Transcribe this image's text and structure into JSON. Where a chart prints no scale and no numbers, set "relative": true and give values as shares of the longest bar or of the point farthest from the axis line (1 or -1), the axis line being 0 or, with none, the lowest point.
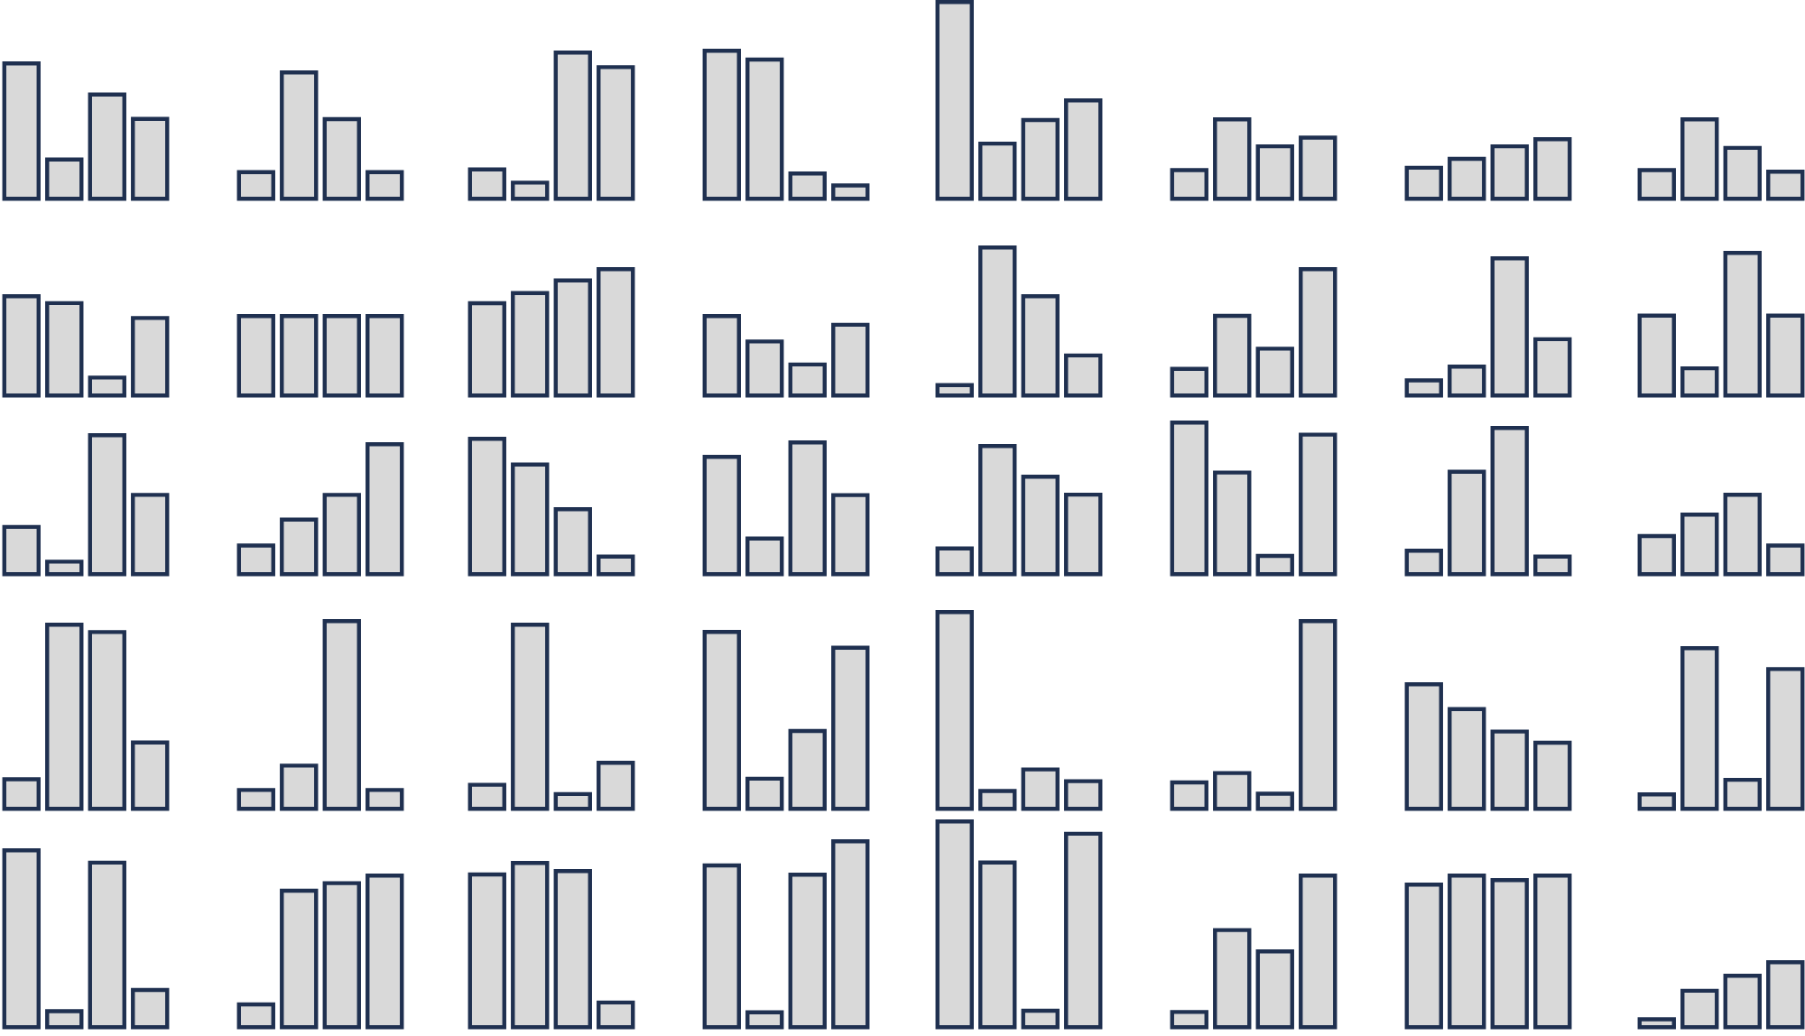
{
  "chart_data": [
    {
      "type": "bar",
      "relative": true,
      "categories": [
        null,
        null,
        null,
        null
      ],
      "values": [
        1,
        0.29,
        0.77,
        0.59
      ],
      "color": "#d9d9d9"
    },
    {
      "type": "bar",
      "relative": true,
      "categories": [
        null,
        null,
        null,
        null
      ],
      "values": [
        0.21,
        1,
        0.63,
        0.21
      ],
      "color": "#d9d9d9"
    },
    {
      "type": "bar",
      "relative": true,
      "categories": [
        null,
        null,
        null,
        null
      ],
      "values": [
        0.2,
        0.11,
        1,
        0.9
      ],
      "color": "#d9d9d9"
    },
    {
      "type": "bar",
      "relative": true,
      "categories": [
        null,
        null,
        null,
        null
      ],
      "values": [
        1,
        0.94,
        0.17,
        0.09
      ],
      "color": "#d9d9d9"
    },
    {
      "type": "bar",
      "relative": true,
      "categories": [
        null,
        null,
        null,
        null
      ],
      "values": [
        1,
        0.28,
        0.4,
        0.5
      ],
      "color": "#d9d9d9"
    },
    {
      "type": "bar",
      "relative": true,
      "categories": [
        null,
        null,
        null,
        null
      ],
      "values": [
        0.36,
        1,
        0.66,
        0.77
      ],
      "color": "#d9d9d9"
    },
    {
      "type": "bar",
      "relative": true,
      "categories": [
        null,
        null,
        null,
        null
      ],
      "values": [
        0.52,
        0.67,
        0.88,
        1
      ],
      "color": "#d9d9d9"
    },
    {
      "type": "bar",
      "relative": true,
      "categories": [
        null,
        null,
        null,
        null
      ],
      "values": [
        0.36,
        1,
        0.64,
        0.34
      ],
      "color": "#d9d9d9"
    },
    {
      "type": "bar",
      "relative": true,
      "categories": [
        null,
        null,
        null,
        null
      ],
      "values": [
        1,
        0.93,
        0.18,
        0.78
      ],
      "color": "#d9d9d9"
    },
    {
      "type": "bar",
      "relative": true,
      "categories": [
        null,
        null,
        null,
        null
      ],
      "values": [
        1,
        1,
        1,
        1
      ],
      "color": "#d9d9d9"
    },
    {
      "type": "bar",
      "relative": true,
      "categories": [
        null,
        null,
        null,
        null
      ],
      "values": [
        0.73,
        0.81,
        0.91,
        1
      ],
      "color": "#d9d9d9"
    },
    {
      "type": "bar",
      "relative": true,
      "categories": [
        null,
        null,
        null,
        null
      ],
      "values": [
        1,
        0.68,
        0.39,
        0.89
      ],
      "color": "#d9d9d9"
    },
    {
      "type": "bar",
      "relative": true,
      "categories": [
        null,
        null,
        null,
        null
      ],
      "values": [
        0.07,
        1,
        0.67,
        0.27
      ],
      "color": "#d9d9d9"
    },
    {
      "type": "bar",
      "relative": true,
      "categories": [
        null,
        null,
        null,
        null
      ],
      "values": [
        0.21,
        0.63,
        0.37,
        1
      ],
      "color": "#d9d9d9"
    },
    {
      "type": "bar",
      "relative": true,
      "categories": [
        null,
        null,
        null,
        null
      ],
      "values": [
        0.11,
        0.21,
        1,
        0.41
      ],
      "color": "#d9d9d9"
    },
    {
      "type": "bar",
      "relative": true,
      "categories": [
        null,
        null,
        null,
        null
      ],
      "values": [
        0.56,
        0.19,
        1,
        0.56
      ],
      "color": "#d9d9d9"
    },
    {
      "type": "bar",
      "relative": true,
      "categories": [
        null,
        null,
        null,
        null
      ],
      "values": [
        0.34,
        0.09,
        1,
        0.57
      ],
      "color": "#d9d9d9"
    },
    {
      "type": "bar",
      "relative": true,
      "categories": [
        null,
        null,
        null,
        null
      ],
      "values": [
        0.22,
        0.42,
        0.61,
        1
      ],
      "color": "#d9d9d9"
    },
    {
      "type": "bar",
      "relative": true,
      "categories": [
        null,
        null,
        null,
        null
      ],
      "values": [
        1,
        0.81,
        0.48,
        0.13
      ],
      "color": "#d9d9d9"
    },
    {
      "type": "bar",
      "relative": true,
      "categories": [
        null,
        null,
        null,
        null
      ],
      "values": [
        0.89,
        0.27,
        1,
        0.6
      ],
      "color": "#d9d9d9"
    },
    {
      "type": "bar",
      "relative": true,
      "categories": [
        null,
        null,
        null,
        null
      ],
      "values": [
        0.2,
        1,
        0.76,
        0.62
      ],
      "color": "#d9d9d9"
    },
    {
      "type": "bar",
      "relative": true,
      "categories": [
        null,
        null,
        null,
        null
      ],
      "values": [
        1,
        0.67,
        0.12,
        0.92
      ],
      "color": "#d9d9d9"
    },
    {
      "type": "bar",
      "relative": true,
      "categories": [
        null,
        null,
        null,
        null
      ],
      "values": [
        0.16,
        0.7,
        1,
        0.12
      ],
      "color": "#d9d9d9"
    },
    {
      "type": "bar",
      "relative": true,
      "categories": [
        null,
        null,
        null,
        null
      ],
      "values": [
        0.48,
        0.75,
        1,
        0.36
      ],
      "color": "#d9d9d9"
    },
    {
      "type": "bar",
      "relative": true,
      "categories": [
        null,
        null,
        null,
        null
      ],
      "values": [
        0.16,
        1,
        0.96,
        0.36
      ],
      "color": "#d9d9d9"
    },
    {
      "type": "bar",
      "relative": true,
      "categories": [
        null,
        null,
        null,
        null
      ],
      "values": [
        0.1,
        0.23,
        1,
        0.1
      ],
      "color": "#d9d9d9"
    },
    {
      "type": "bar",
      "relative": true,
      "categories": [
        null,
        null,
        null,
        null
      ],
      "values": [
        0.13,
        1,
        0.08,
        0.25
      ],
      "color": "#d9d9d9"
    },
    {
      "type": "bar",
      "relative": true,
      "categories": [
        null,
        null,
        null,
        null
      ],
      "values": [
        1,
        0.17,
        0.44,
        0.91
      ],
      "color": "#d9d9d9"
    },
    {
      "type": "bar",
      "relative": true,
      "categories": [
        null,
        null,
        null,
        null
      ],
      "values": [
        1,
        0.09,
        0.2,
        0.14
      ],
      "color": "#d9d9d9"
    },
    {
      "type": "bar",
      "relative": true,
      "categories": [
        null,
        null,
        null,
        null
      ],
      "values": [
        0.14,
        0.19,
        0.08,
        1
      ],
      "color": "#d9d9d9"
    },
    {
      "type": "bar",
      "relative": true,
      "categories": [
        null,
        null,
        null,
        null
      ],
      "values": [
        1,
        0.8,
        0.62,
        0.53
      ],
      "color": "#d9d9d9"
    },
    {
      "type": "bar",
      "relative": true,
      "categories": [
        null,
        null,
        null,
        null
      ],
      "values": [
        0.09,
        1,
        0.18,
        0.87
      ],
      "color": "#d9d9d9"
    },
    {
      "type": "bar",
      "relative": true,
      "categories": [
        null,
        null,
        null,
        null
      ],
      "values": [
        1,
        0.09,
        0.93,
        0.21
      ],
      "color": "#d9d9d9"
    },
    {
      "type": "bar",
      "relative": true,
      "categories": [
        null,
        null,
        null,
        null
      ],
      "values": [
        0.15,
        0.9,
        0.95,
        1
      ],
      "color": "#d9d9d9"
    },
    {
      "type": "bar",
      "relative": true,
      "categories": [
        null,
        null,
        null,
        null
      ],
      "values": [
        0.93,
        1,
        0.95,
        0.15
      ],
      "color": "#d9d9d9"
    },
    {
      "type": "bar",
      "relative": true,
      "categories": [
        null,
        null,
        null,
        null
      ],
      "values": [
        0.87,
        0.08,
        0.82,
        1
      ],
      "color": "#d9d9d9"
    },
    {
      "type": "bar",
      "relative": true,
      "categories": [
        null,
        null,
        null,
        null
      ],
      "values": [
        1,
        0.8,
        0.08,
        0.94
      ],
      "color": "#d9d9d9"
    },
    {
      "type": "bar",
      "relative": true,
      "categories": [
        null,
        null,
        null,
        null
      ],
      "values": [
        0.1,
        0.64,
        0.5,
        1
      ],
      "color": "#d9d9d9"
    },
    {
      "type": "bar",
      "relative": true,
      "categories": [
        null,
        null,
        null,
        null
      ],
      "values": [
        0.94,
        1,
        0.97,
        1
      ],
      "color": "#d9d9d9"
    },
    {
      "type": "bar",
      "relative": true,
      "categories": [
        null,
        null,
        null,
        null
      ],
      "values": [
        0.12,
        0.56,
        0.79,
        1
      ],
      "color": "#d9d9d9"
    }
  ]
}
